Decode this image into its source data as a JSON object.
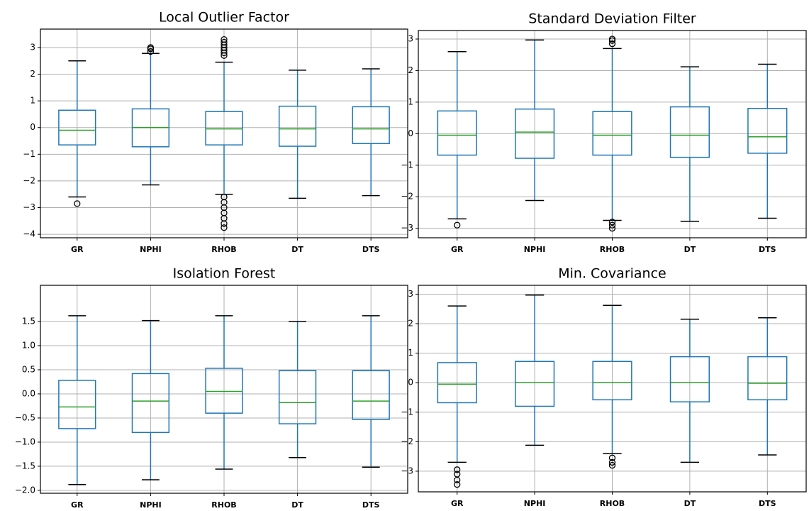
{
  "chart_data": [
    {
      "type": "box",
      "title": "Local Outlier Factor",
      "categories": [
        "GR",
        "NPHI",
        "RHOB",
        "DT",
        "DTS"
      ],
      "whisker_low": [
        -2.6,
        -2.15,
        -2.5,
        -2.65,
        -2.55
      ],
      "q1": [
        -0.65,
        -0.72,
        -0.65,
        -0.7,
        -0.6
      ],
      "median": [
        -0.1,
        0,
        -0.05,
        -0.05,
        -0.05
      ],
      "q3": [
        0.65,
        0.7,
        0.6,
        0.8,
        0.78
      ],
      "whisker_high": [
        2.5,
        2.78,
        2.45,
        2.15,
        2.2
      ],
      "outliers": [
        [
          -2.85
        ],
        [
          2.85,
          2.95,
          3.0
        ],
        [
          2.7,
          2.8,
          2.9,
          3.0,
          3.1,
          3.2,
          3.3,
          -2.6,
          -2.8,
          -3.0,
          -3.2,
          -3.4,
          -3.6,
          -3.75
        ],
        [],
        []
      ],
      "color": "#1f77b4",
      "median_color": "#2ca02c",
      "ylim": [
        -4.13,
        3.69
      ],
      "yticks": [
        {
          "value": -4,
          "label": "−4"
        },
        {
          "value": -3,
          "label": "−3"
        },
        {
          "value": -2,
          "label": "−2"
        },
        {
          "value": -1,
          "label": "−1"
        },
        0,
        1,
        2,
        3
      ],
      "grid": true
    },
    {
      "type": "box",
      "title": "Standard Deviation Filter",
      "categories": [
        "GR",
        "NPHI",
        "RHOB",
        "DT",
        "DTS"
      ],
      "whisker_low": [
        -2.7,
        -2.12,
        -2.75,
        -2.78,
        -2.68
      ],
      "q1": [
        -0.68,
        -0.78,
        -0.68,
        -0.75,
        -0.62
      ],
      "median": [
        -0.05,
        0.05,
        -0.05,
        -0.05,
        -0.1
      ],
      "q3": [
        0.72,
        0.78,
        0.7,
        0.85,
        0.8
      ],
      "whisker_high": [
        2.6,
        2.97,
        2.7,
        2.12,
        2.2
      ],
      "outliers": [
        [
          -2.9
        ],
        [],
        [
          2.85,
          2.95,
          3.0,
          -2.8,
          -2.9,
          -3.0
        ],
        [],
        []
      ],
      "color": "#1f77b4",
      "median_color": "#2ca02c",
      "ylim": [
        -3.3,
        3.27
      ],
      "yticks": [
        {
          "value": -3,
          "label": "−3"
        },
        {
          "value": -2,
          "label": "−2"
        },
        {
          "value": -1,
          "label": "−1"
        },
        0,
        1,
        2,
        3
      ],
      "grid": true
    },
    {
      "type": "box",
      "title": "Isolation Forest",
      "categories": [
        "GR",
        "NPHI",
        "RHOB",
        "DT",
        "DTS"
      ],
      "whisker_low": [
        -1.88,
        -1.78,
        -1.56,
        -1.32,
        -1.52
      ],
      "q1": [
        -0.72,
        -0.8,
        -0.4,
        -0.62,
        -0.53
      ],
      "median": [
        -0.27,
        -0.15,
        0.05,
        -0.18,
        -0.15
      ],
      "q3": [
        0.28,
        0.42,
        0.53,
        0.48,
        0.48
      ],
      "whisker_high": [
        1.62,
        1.52,
        1.62,
        1.5,
        1.62
      ],
      "outliers": [
        [],
        [],
        [],
        [],
        []
      ],
      "color": "#1f77b4",
      "median_color": "#2ca02c",
      "ylim": [
        -2.06,
        2.25
      ],
      "yticks": [
        {
          "value": -2,
          "label": "−2.0"
        },
        {
          "value": -1.5,
          "label": "−1.5"
        },
        {
          "value": -1,
          "label": "−1.0"
        },
        {
          "value": -0.5,
          "label": "−0.5"
        },
        {
          "value": 0,
          "label": "0.0"
        },
        0.5,
        {
          "value": 1,
          "label": "1.0"
        },
        1.5
      ],
      "grid": true
    },
    {
      "type": "box",
      "title": "Min. Covariance",
      "categories": [
        "GR",
        "NPHI",
        "RHOB",
        "DT",
        "DTS"
      ],
      "whisker_low": [
        -2.7,
        -2.12,
        -2.4,
        -2.7,
        -2.45
      ],
      "q1": [
        -0.68,
        -0.8,
        -0.58,
        -0.65,
        -0.58
      ],
      "median": [
        -0.05,
        0,
        0,
        0,
        -0.02
      ],
      "q3": [
        0.68,
        0.72,
        0.72,
        0.88,
        0.88
      ],
      "whisker_high": [
        2.6,
        2.97,
        2.62,
        2.15,
        2.2
      ],
      "outliers": [
        [
          -2.95,
          -3.1,
          -3.3,
          -3.45
        ],
        [],
        [
          -2.55,
          -2.7,
          -2.8
        ],
        [],
        []
      ],
      "color": "#1f77b4",
      "median_color": "#2ca02c",
      "ylim": [
        -3.7,
        3.3
      ],
      "yticks": [
        {
          "value": -3,
          "label": "−3"
        },
        {
          "value": -2,
          "label": "−2"
        },
        {
          "value": -1,
          "label": "−1"
        },
        0,
        1,
        2,
        3
      ],
      "grid": true
    }
  ]
}
